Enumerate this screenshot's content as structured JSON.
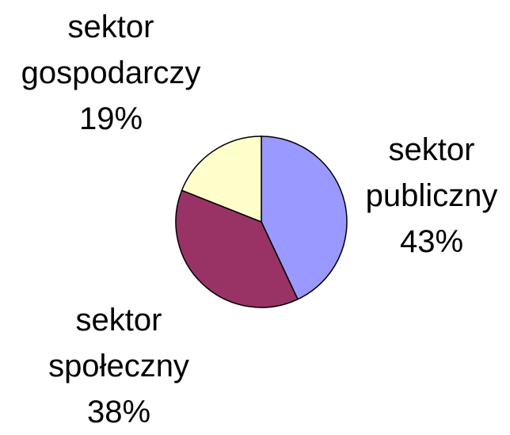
{
  "chart_data": {
    "type": "pie",
    "categories": [
      "sektor publiczny",
      "sektor społeczny",
      "sektor gospodarczy"
    ],
    "values": [
      43,
      38,
      19
    ],
    "value_labels": [
      "43%",
      "38%",
      "19%"
    ],
    "colors": [
      "#9999ff",
      "#993366",
      "#ffffcc"
    ]
  }
}
